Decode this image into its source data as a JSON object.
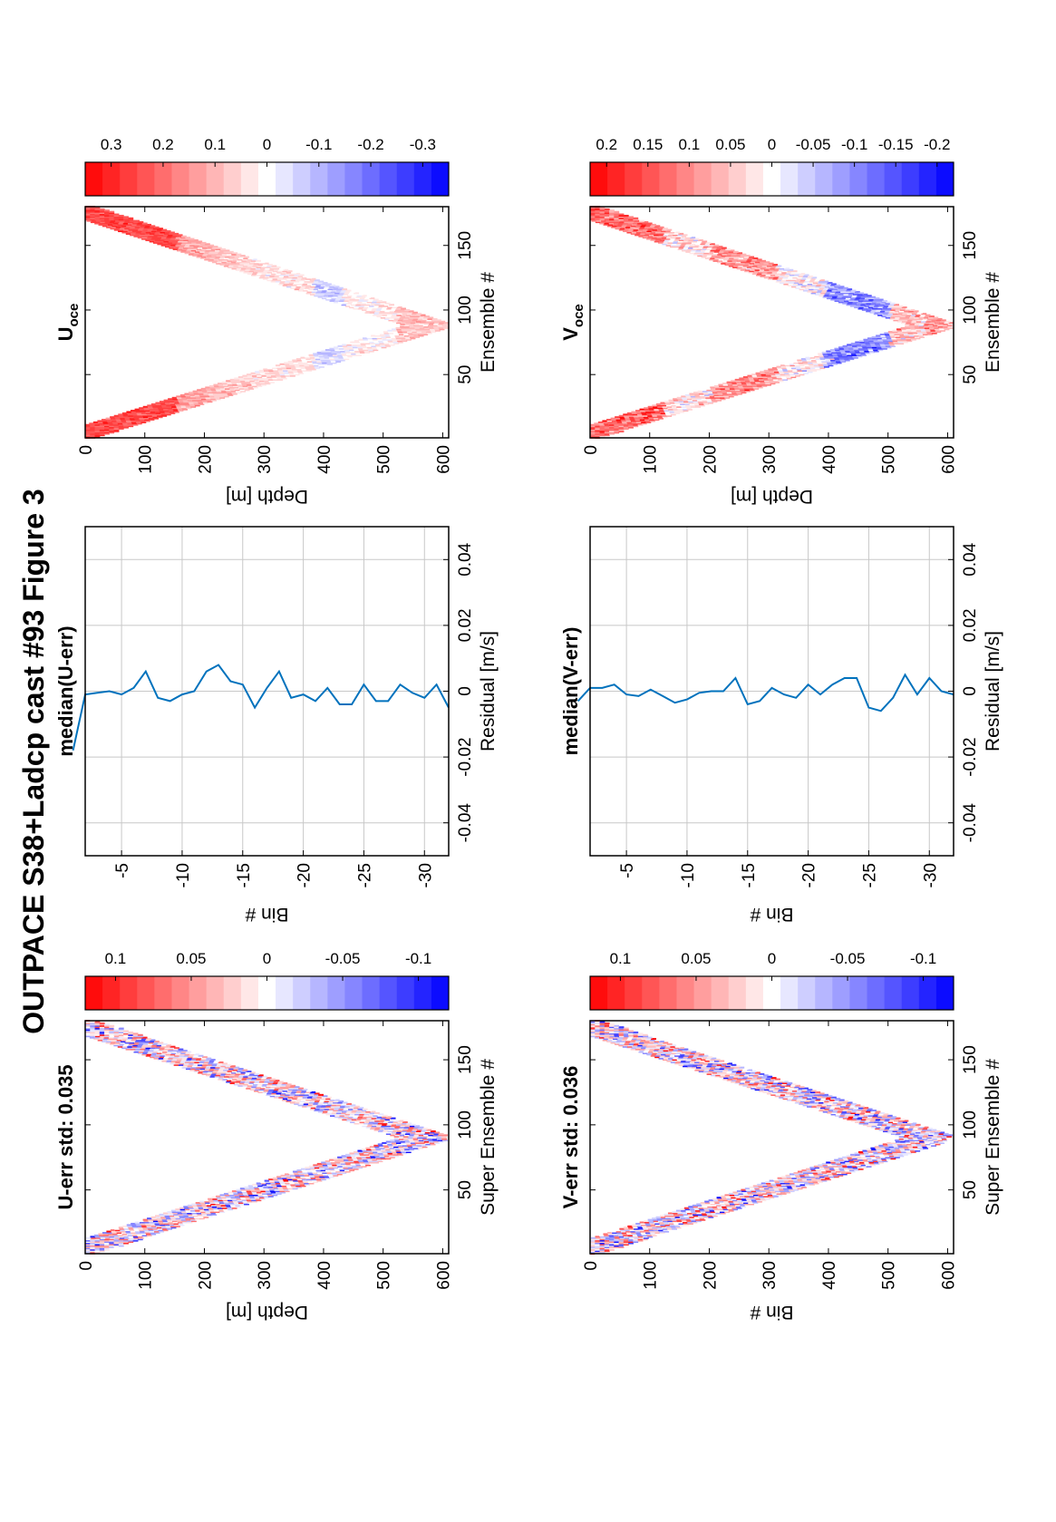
{
  "title": "OUTPACE S38+Ladcp cast #93  Figure 3",
  "colors": {
    "positive": "#ff0000",
    "neutral": "#ffffff",
    "negative": "#0000ff",
    "line": "#0072bd",
    "grid": "#c8c8c8"
  },
  "chart_data": [
    {
      "id": "u-err",
      "type": "heatmap",
      "title": "U-err std: 0.035",
      "xlabel": "Super Ensemble #",
      "ylabel": "Depth [m]",
      "xlim": [
        1,
        180
      ],
      "ylim": [
        0,
        610
      ],
      "xticks": [
        50,
        100,
        150
      ],
      "yticks": [
        0,
        100,
        200,
        300,
        400,
        500,
        600
      ],
      "field": {
        "pattern": "v-shape",
        "turn_x": 90,
        "max_depth": 605,
        "band_width": 80,
        "std": 0.035
      },
      "colorbar": {
        "min": -0.12,
        "max": 0.12,
        "ticks": [
          0.1,
          0.05,
          0,
          -0.05,
          -0.1
        ]
      }
    },
    {
      "id": "median-u-err",
      "type": "line",
      "title": "median(U-err)",
      "xlabel": "Residual [m/s]",
      "ylabel": "Bin #",
      "xlim": [
        -0.05,
        0.05
      ],
      "ylim": [
        -2,
        -32
      ],
      "xticks": [
        -0.04,
        -0.02,
        0,
        0.02,
        0.04
      ],
      "yticks": [
        -5,
        -10,
        -15,
        -20,
        -25,
        -30
      ],
      "grid": true,
      "series": [
        {
          "bins": [
            -1,
            -2,
            -3,
            -4,
            -5,
            -6,
            -7,
            -8,
            -9,
            -10,
            -11,
            -12,
            -13,
            -14,
            -15,
            -16,
            -17,
            -18,
            -19,
            -20,
            -21,
            -22,
            -23,
            -24,
            -25,
            -26,
            -27,
            -28,
            -29,
            -30,
            -31,
            -32
          ],
          "values": [
            -0.018,
            -0.001,
            -0.0005,
            0.0,
            -0.001,
            0.001,
            0.006,
            -0.002,
            -0.003,
            -0.001,
            0.0,
            0.006,
            0.008,
            0.003,
            0.002,
            -0.005,
            0.001,
            0.006,
            -0.002,
            -0.001,
            -0.003,
            0.001,
            -0.004,
            -0.004,
            0.002,
            -0.003,
            -0.003,
            0.002,
            -0.0005,
            -0.002,
            0.002,
            -0.005
          ]
        }
      ]
    },
    {
      "id": "u-oce",
      "type": "heatmap",
      "title": "U",
      "title_subscript": "oce",
      "xlabel": "Ensemble #",
      "ylabel": "Depth [m]",
      "xlim": [
        1,
        180
      ],
      "ylim": [
        0,
        610
      ],
      "xticks": [
        50,
        100,
        150
      ],
      "yticks": [
        0,
        100,
        200,
        300,
        400,
        500,
        600
      ],
      "field": {
        "pattern": "v-shape-depth-profile",
        "turn_x": 88,
        "max_depth": 605,
        "band_width": 70
      },
      "colorbar": {
        "min": -0.35,
        "max": 0.35,
        "ticks": [
          0.3,
          0.2,
          0.1,
          0,
          -0.1,
          -0.2,
          -0.3
        ]
      }
    },
    {
      "id": "v-err",
      "type": "heatmap",
      "title": "V-err std: 0.036",
      "xlabel": "Super Ensemble #",
      "ylabel": "Bin #",
      "xlim": [
        1,
        180
      ],
      "ylim": [
        0,
        610
      ],
      "xticks": [
        50,
        100,
        150
      ],
      "yticks": [
        0,
        100,
        200,
        300,
        400,
        500,
        600
      ],
      "field": {
        "pattern": "v-shape",
        "turn_x": 90,
        "max_depth": 605,
        "band_width": 80,
        "std": 0.036
      },
      "colorbar": {
        "min": -0.12,
        "max": 0.12,
        "ticks": [
          0.1,
          0.05,
          0,
          -0.05,
          -0.1
        ]
      }
    },
    {
      "id": "median-v-err",
      "type": "line",
      "title": "median(V-err)",
      "xlabel": "Residual [m/s]",
      "ylabel": "Bin #",
      "xlim": [
        -0.05,
        0.05
      ],
      "ylim": [
        -2,
        -32
      ],
      "xticks": [
        -0.04,
        -0.02,
        0,
        0.02,
        0.04
      ],
      "yticks": [
        -5,
        -10,
        -15,
        -20,
        -25,
        -30
      ],
      "grid": true,
      "series": [
        {
          "bins": [
            -1,
            -2,
            -3,
            -4,
            -5,
            -6,
            -7,
            -8,
            -9,
            -10,
            -11,
            -12,
            -13,
            -14,
            -15,
            -16,
            -17,
            -18,
            -19,
            -20,
            -21,
            -22,
            -23,
            -24,
            -25,
            -26,
            -27,
            -28,
            -29,
            -30,
            -31,
            -32
          ],
          "values": [
            -0.003,
            0.001,
            0.001,
            0.002,
            -0.001,
            -0.0015,
            0.0005,
            -0.0015,
            -0.0035,
            -0.0025,
            -0.0005,
            0.0,
            0.0,
            0.004,
            -0.004,
            -0.003,
            0.001,
            -0.001,
            -0.002,
            0.002,
            -0.001,
            0.002,
            0.004,
            0.004,
            -0.005,
            -0.006,
            -0.002,
            0.005,
            -0.001,
            0.004,
            0.0,
            -0.001
          ]
        }
      ]
    },
    {
      "id": "v-oce",
      "type": "heatmap",
      "title": "V",
      "title_subscript": "oce",
      "xlabel": "Ensemble #",
      "ylabel": "Depth [m]",
      "xlim": [
        1,
        180
      ],
      "ylim": [
        0,
        610
      ],
      "xticks": [
        50,
        100,
        150
      ],
      "yticks": [
        0,
        100,
        200,
        300,
        400,
        500,
        600
      ],
      "field": {
        "pattern": "v-shape-depth-profile-v",
        "turn_x": 88,
        "max_depth": 605,
        "band_width": 70
      },
      "colorbar": {
        "min": -0.22,
        "max": 0.22,
        "ticks": [
          0.2,
          0.15,
          0.1,
          0.05,
          0,
          -0.05,
          -0.1,
          -0.15,
          -0.2
        ]
      }
    }
  ]
}
